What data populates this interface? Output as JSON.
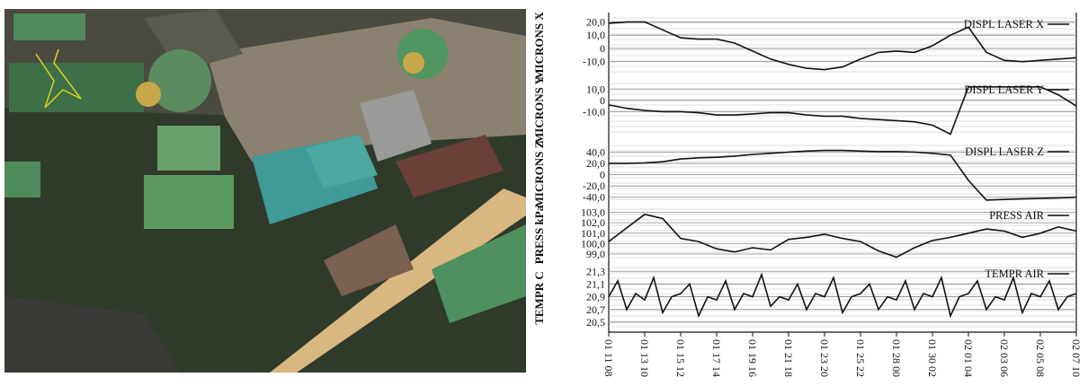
{
  "chart_data": [
    {
      "type": "line",
      "ylabel": "MICRONS X",
      "x": [
        0,
        0.5,
        1,
        1.5,
        2,
        2.5,
        3,
        3.5,
        4,
        4.5,
        5,
        5.5,
        6,
        6.5,
        7,
        7.5,
        8,
        8.5,
        9,
        9.5,
        10,
        10.5,
        11,
        11.5,
        12,
        12.5,
        13
      ],
      "xlim": [
        0,
        13
      ],
      "ylim": [
        -19,
        23
      ],
      "yticks": [
        {
          "value": -10,
          "label": "-10,0"
        },
        0,
        {
          "value": 10,
          "label": "10,0"
        },
        {
          "value": 20,
          "label": "20,0"
        }
      ],
      "grid": true,
      "series": [
        {
          "name": "DISPL LASER X",
          "color": "#111111",
          "values": [
            19,
            20,
            20,
            14,
            8,
            7,
            7,
            4,
            -2,
            -8,
            -12,
            -15,
            -16,
            -14,
            -8,
            -3,
            -2,
            -3,
            2,
            10,
            16,
            -3,
            -9,
            -10,
            -9,
            -8,
            -7
          ]
        }
      ]
    },
    {
      "type": "line",
      "ylabel": "MICRONS Y",
      "x": [
        0,
        0.5,
        1,
        1.5,
        2,
        2.5,
        3,
        3.5,
        4,
        4.5,
        5,
        5.5,
        6,
        6.5,
        7,
        7.5,
        8,
        8.5,
        9,
        9.5,
        10,
        10.5,
        11,
        11.5,
        12,
        12.5,
        13
      ],
      "xlim": [
        0,
        13
      ],
      "ylim": [
        -32,
        15
      ],
      "yticks": [
        {
          "value": -10,
          "label": "-10,0"
        },
        0,
        {
          "value": 10,
          "label": "10,0"
        }
      ],
      "grid": true,
      "series": [
        {
          "name": "DISPL LASER Y",
          "color": "#111111",
          "values": [
            -4,
            -7,
            -9,
            -10,
            -10,
            -11,
            -13,
            -13,
            -12,
            -11,
            -11,
            -13,
            -14,
            -14,
            -16,
            -17,
            -18,
            -19,
            -22,
            -30,
            12,
            12,
            12,
            12,
            12,
            5,
            -5
          ]
        }
      ]
    },
    {
      "type": "line",
      "ylabel": "MICRONS Z",
      "x": [
        0,
        0.5,
        1,
        1.5,
        2,
        2.5,
        3,
        3.5,
        4,
        4.5,
        5,
        5.5,
        6,
        6.5,
        7,
        7.5,
        8,
        8.5,
        9,
        9.5,
        10,
        10.5,
        11,
        11.5,
        12,
        12.5,
        13
      ],
      "xlim": [
        0,
        13
      ],
      "ylim": [
        -50,
        52
      ],
      "yticks": [
        {
          "value": -40,
          "label": "-40,0"
        },
        {
          "value": -20,
          "label": "-20,0"
        },
        0,
        {
          "value": 20,
          "label": "20,0"
        },
        {
          "value": 40,
          "label": "40,0"
        }
      ],
      "grid": true,
      "series": [
        {
          "name": "DISPL LASER Z",
          "color": "#111111",
          "values": [
            20,
            20,
            21,
            23,
            28,
            30,
            31,
            33,
            36,
            38,
            40,
            42,
            43,
            43,
            42,
            41,
            41,
            40,
            38,
            35,
            -10,
            -45,
            -44,
            -43,
            -42,
            -41,
            -40
          ]
        }
      ]
    },
    {
      "type": "line",
      "ylabel": "PRESS kPa",
      "x": [
        0,
        0.5,
        1,
        1.5,
        2,
        2.5,
        3,
        3.5,
        4,
        4.5,
        5,
        5.5,
        6,
        6.5,
        7,
        7.5,
        8,
        8.5,
        9,
        9.5,
        10,
        10.5,
        11,
        11.5,
        12,
        12.5,
        13
      ],
      "xlim": [
        0,
        13
      ],
      "ylim": [
        98.4,
        103.3
      ],
      "yticks": [
        {
          "value": 99,
          "label": "99,0"
        },
        {
          "value": 100,
          "label": "100,0"
        },
        {
          "value": 101,
          "label": "101,0"
        },
        {
          "value": 102,
          "label": "102,0"
        },
        {
          "value": 103,
          "label": "103,0"
        }
      ],
      "grid": true,
      "series": [
        {
          "name": "PRESS AIR",
          "color": "#111111",
          "values": [
            100.2,
            101.5,
            102.8,
            102.4,
            100.5,
            100.2,
            99.5,
            99.2,
            99.6,
            99.4,
            100.4,
            100.6,
            100.9,
            100.5,
            100.2,
            99.3,
            98.7,
            99.6,
            100.3,
            100.6,
            101.0,
            101.4,
            101.2,
            100.6,
            101.0,
            101.6,
            101.2
          ]
        }
      ]
    },
    {
      "type": "line",
      "ylabel": "TEMPR C",
      "x": [
        0,
        0.25,
        0.5,
        0.75,
        1,
        1.25,
        1.5,
        1.75,
        2,
        2.25,
        2.5,
        2.75,
        3,
        3.25,
        3.5,
        3.75,
        4,
        4.25,
        4.5,
        4.75,
        5,
        5.25,
        5.5,
        5.75,
        6,
        6.25,
        6.5,
        6.75,
        7,
        7.25,
        7.5,
        7.75,
        8,
        8.25,
        8.5,
        8.75,
        9,
        9.25,
        9.5,
        9.75,
        10,
        10.25,
        10.5,
        10.75,
        11,
        11.25,
        11.5,
        11.75,
        12,
        12.25,
        12.5,
        12.75,
        13
      ],
      "xlim": [
        0,
        13
      ],
      "ylim": [
        20.4,
        21.36
      ],
      "yticks": [
        {
          "value": 20.5,
          "label": "20,5"
        },
        {
          "value": 20.7,
          "label": "20,7"
        },
        {
          "value": 20.9,
          "label": "20,9"
        },
        {
          "value": 21.1,
          "label": "21,1"
        },
        {
          "value": 21.3,
          "label": "21,3"
        }
      ],
      "xticks": [
        {
          "value": 0,
          "label": "01 11 08"
        },
        {
          "value": 1,
          "label": "01 13 10"
        },
        {
          "value": 2,
          "label": "01 15 12"
        },
        {
          "value": 3,
          "label": "01 17 14"
        },
        {
          "value": 4,
          "label": "01 19 16"
        },
        {
          "value": 5,
          "label": "01 21 18"
        },
        {
          "value": 6,
          "label": "01 23 20"
        },
        {
          "value": 7,
          "label": "01 25 22"
        },
        {
          "value": 8,
          "label": "01 28 00"
        },
        {
          "value": 9,
          "label": "01 30 02"
        },
        {
          "value": 10,
          "label": "02 01 04"
        },
        {
          "value": 11,
          "label": "02 03 06"
        },
        {
          "value": 12,
          "label": "02 05 08"
        },
        {
          "value": 13,
          "label": "02 07 10"
        }
      ],
      "grid": true,
      "series": [
        {
          "name": "TEMPR AIR",
          "color": "#111111",
          "values": [
            20.9,
            21.15,
            20.7,
            20.95,
            20.85,
            21.2,
            20.65,
            20.9,
            20.95,
            21.1,
            20.6,
            20.9,
            20.85,
            21.15,
            20.7,
            20.95,
            20.9,
            21.25,
            20.75,
            20.9,
            20.85,
            21.1,
            20.7,
            20.95,
            20.9,
            21.2,
            20.65,
            20.9,
            20.95,
            21.1,
            20.7,
            20.9,
            20.85,
            21.15,
            20.7,
            20.95,
            20.9,
            21.2,
            20.6,
            20.9,
            20.95,
            21.15,
            20.7,
            20.9,
            20.85,
            21.2,
            20.65,
            20.95,
            20.9,
            21.15,
            20.7,
            20.9,
            20.95
          ]
        }
      ]
    }
  ]
}
